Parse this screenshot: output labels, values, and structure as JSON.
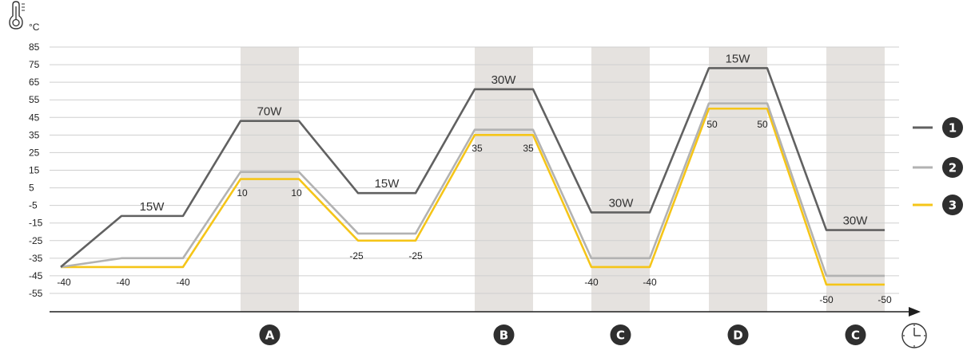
{
  "chart_data": {
    "type": "line",
    "y_unit": "°C",
    "ylim": [
      -55,
      85
    ],
    "y_ticks": [
      85,
      75,
      65,
      55,
      45,
      35,
      25,
      15,
      5,
      -5,
      -15,
      -25,
      -35,
      -45,
      -55
    ],
    "grid": "horizontal",
    "legend_position": "right",
    "x": [
      0,
      1,
      2,
      3,
      4,
      5,
      6,
      7,
      8,
      9,
      10,
      11,
      12,
      13,
      14,
      15,
      16,
      17,
      18,
      19,
      20
    ],
    "series": [
      {
        "name": "1",
        "color": "#616161",
        "values": [
          -40,
          -11,
          -11,
          43,
          43,
          2,
          2,
          61,
          61,
          -9,
          -9,
          73,
          73,
          -19,
          -19,
          null,
          null,
          null,
          null,
          null,
          null
        ]
      },
      {
        "name": "2",
        "color": "#b2b2b2",
        "values": [
          -40,
          -35,
          -35,
          14,
          14,
          -21,
          -21,
          38,
          38,
          -35,
          -35,
          53,
          53,
          -45,
          -45,
          null,
          null,
          null,
          null,
          null,
          null
        ]
      },
      {
        "name": "3",
        "color": "#f5c518",
        "values": [
          -40,
          -40,
          -40,
          10,
          10,
          -25,
          -25,
          35,
          35,
          -40,
          -40,
          50,
          50,
          -50,
          -50,
          null,
          null,
          null,
          null,
          null,
          null
        ]
      }
    ],
    "power_labels": [
      "15W",
      "70W",
      "15W",
      "30W",
      "30W",
      "15W",
      "30W"
    ],
    "temperature_labels": [
      "-40",
      "-40",
      "-40",
      "10",
      "10",
      "-25",
      "-25",
      "35",
      "35",
      "-40",
      "-40",
      "50",
      "50",
      "-50",
      "-50"
    ],
    "phase_labels": [
      "A",
      "B",
      "C",
      "D",
      "C"
    ]
  },
  "colors": {
    "band": "#e5e2df",
    "grid": "#cfcfcf",
    "axis": "#1e1e1e",
    "badge": "#2f2f2f"
  },
  "icons": {
    "y_axis": "thermometer-icon",
    "x_axis": "clock-icon"
  }
}
